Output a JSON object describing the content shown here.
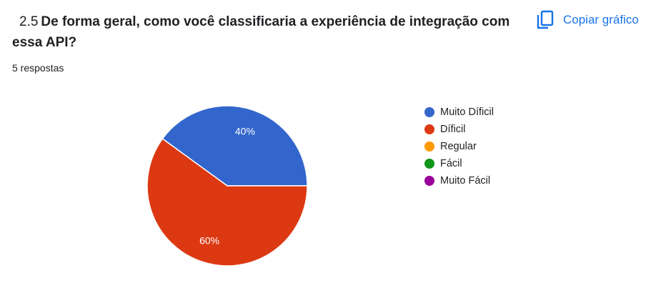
{
  "question": {
    "number": "2.5",
    "text": "De forma geral, como você classificaria a experiência de integração com essa API?"
  },
  "responses_label": "5 respostas",
  "copy_button": {
    "label": "Copiar gráfico",
    "icon": "copy-icon",
    "color": "#1a73e8"
  },
  "chart_data": {
    "type": "pie",
    "categories": [
      "Muito Díficil",
      "Díficil",
      "Regular",
      "Fácil",
      "Muito Fácil"
    ],
    "values": [
      40,
      60,
      0,
      0,
      0
    ],
    "data_labels": [
      "40%",
      "60%",
      "",
      "",
      ""
    ],
    "colors": [
      "#3366cc",
      "#dc3912",
      "#ff9900",
      "#109618",
      "#990099"
    ],
    "legend_position": "right"
  }
}
